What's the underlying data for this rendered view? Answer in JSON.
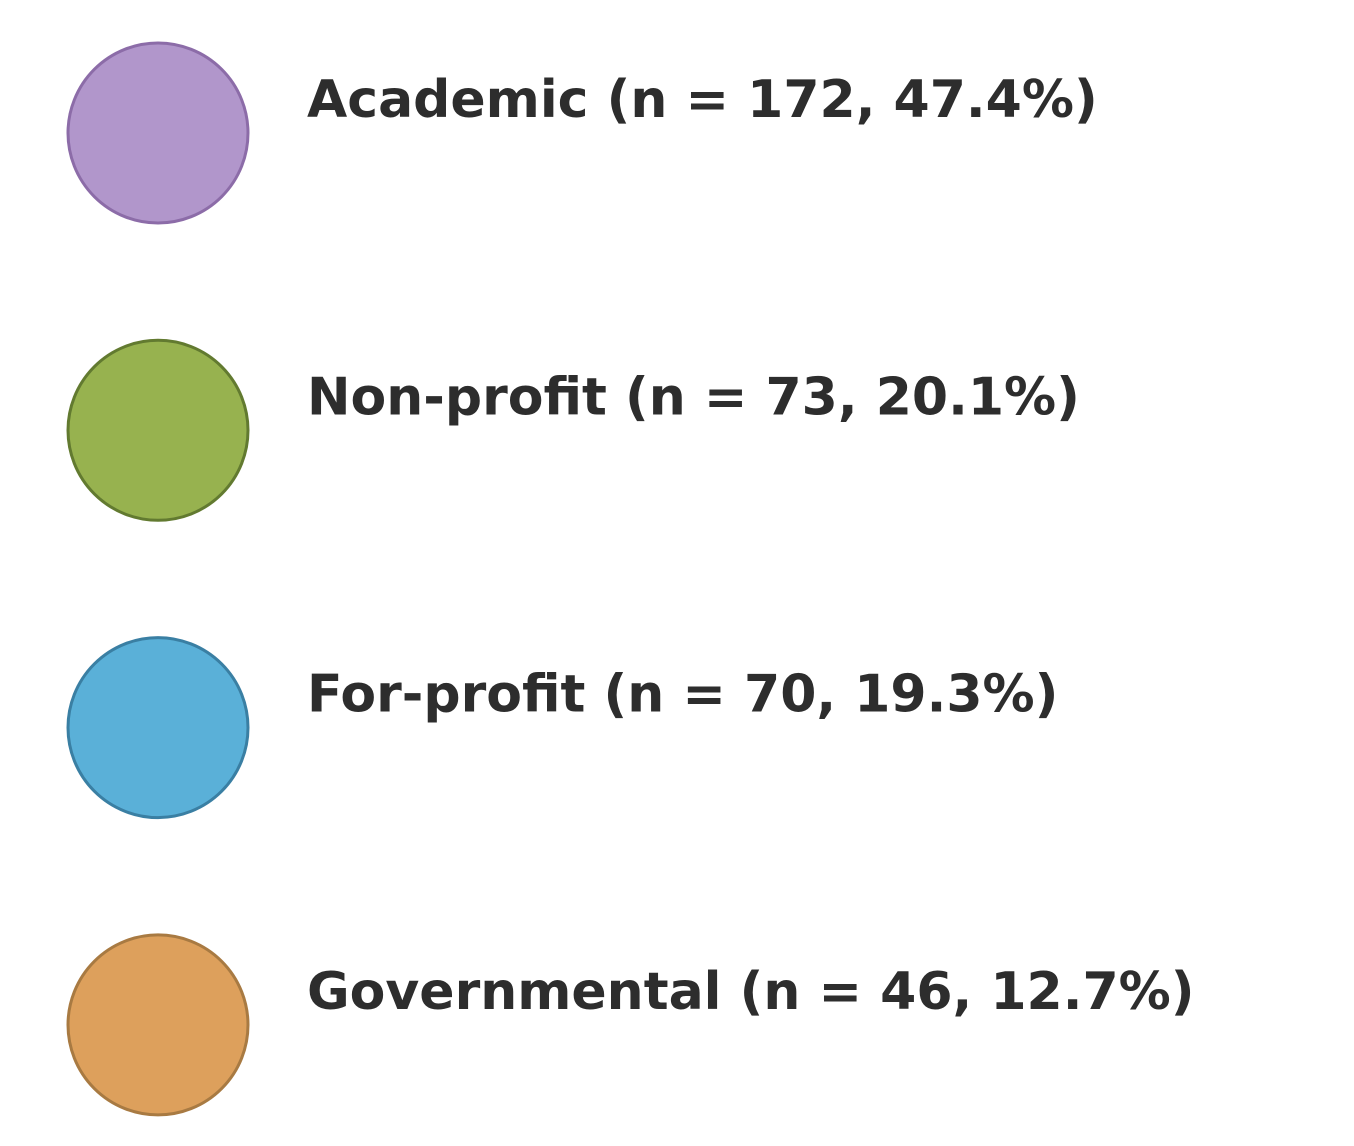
{
  "legend": {
    "items": [
      {
        "label": "Academic (n = 172, 47.4%)",
        "color": "#b196cb",
        "stroke": "#8c6ca8"
      },
      {
        "label": "Non-profit (n = 73, 20.1%)",
        "color": "#97b24f",
        "stroke": "#627a30"
      },
      {
        "label": "For-profit (n = 70, 19.3%)",
        "color": "#5ab0d8",
        "stroke": "#3a7fa3"
      },
      {
        "label": "Governmental (n = 46, 12.7%)",
        "color": "#dda05c",
        "stroke": "#a87a42"
      }
    ]
  }
}
